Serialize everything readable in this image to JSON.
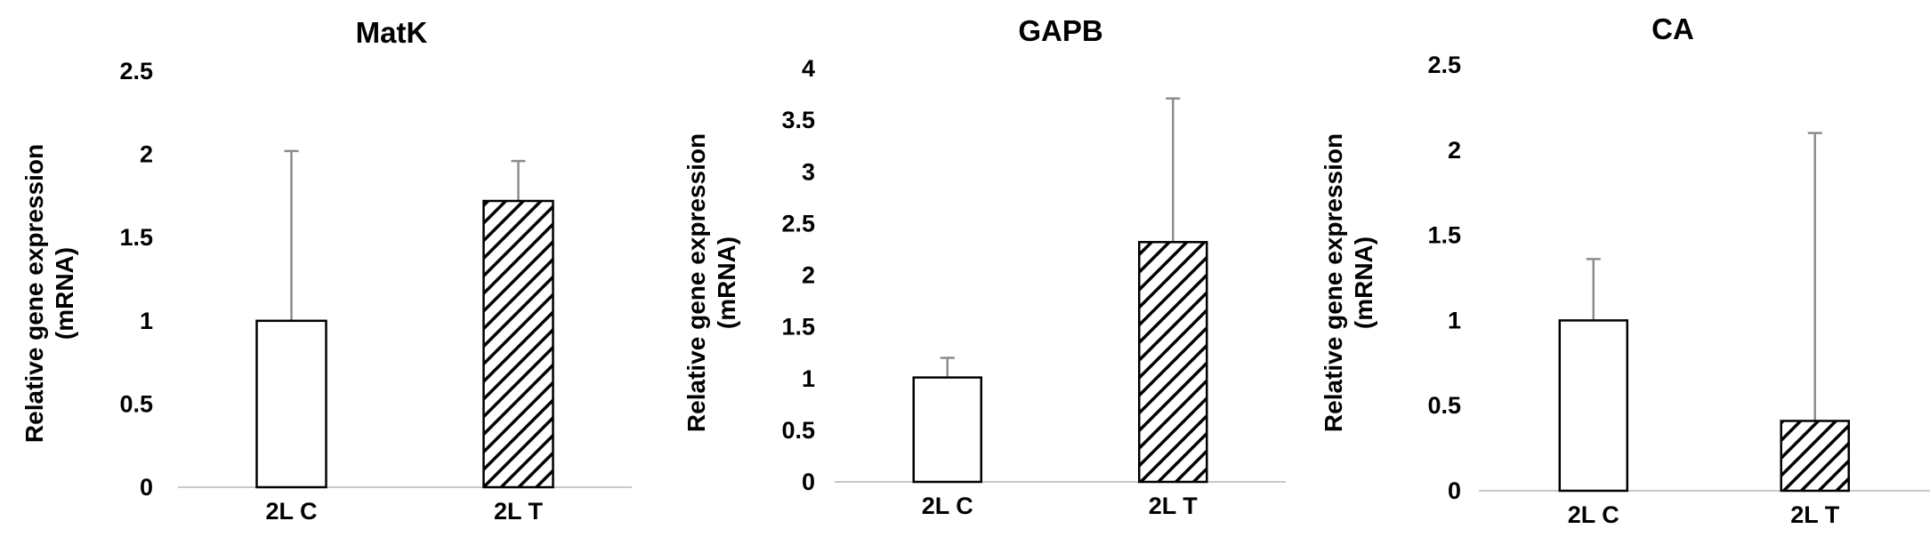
{
  "chart_data": [
    {
      "type": "bar",
      "title": "MatK",
      "ylabel": [
        "Relative gene expression",
        "(mRNA)"
      ],
      "xlabel": "",
      "categories": [
        "2L C",
        "2L T"
      ],
      "values": [
        1.0,
        1.72
      ],
      "errors": [
        1.02,
        0.24
      ],
      "patterns": [
        "solid",
        "hatched"
      ],
      "ylim": [
        0,
        2.5
      ],
      "yticks": [
        "0",
        "0.5",
        "1",
        "1.5",
        "2",
        "2.5"
      ],
      "ytick_values": [
        0,
        0.5,
        1,
        1.5,
        2,
        2.5
      ],
      "grid": false
    },
    {
      "type": "bar",
      "title": "GAPB",
      "ylabel": [
        "Relative gene expression",
        "(mRNA)"
      ],
      "xlabel": "",
      "categories": [
        "2L C",
        "2L T"
      ],
      "values": [
        1.01,
        2.32
      ],
      "errors": [
        0.19,
        1.39
      ],
      "patterns": [
        "solid",
        "hatched"
      ],
      "ylim": [
        0,
        4
      ],
      "yticks": [
        "0",
        "0.5",
        "1",
        "1.5",
        "2",
        "2.5",
        "3",
        "3.5",
        "4"
      ],
      "ytick_values": [
        0,
        0.5,
        1,
        1.5,
        2,
        2.5,
        3,
        3.5,
        4
      ],
      "grid": false
    },
    {
      "type": "bar",
      "title": "CA",
      "ylabel": [
        "Relative gene expression",
        "(mRNA)"
      ],
      "xlabel": "",
      "categories": [
        "2L C",
        "2L T"
      ],
      "values": [
        1.0,
        0.41
      ],
      "errors": [
        0.36,
        1.69
      ],
      "patterns": [
        "solid",
        "hatched"
      ],
      "ylim": [
        0,
        2.5
      ],
      "yticks": [
        "0",
        "0.5",
        "1",
        "1.5",
        "2",
        "2.5"
      ],
      "ytick_values": [
        0,
        0.5,
        1,
        1.5,
        2,
        2.5
      ],
      "grid": false
    }
  ]
}
